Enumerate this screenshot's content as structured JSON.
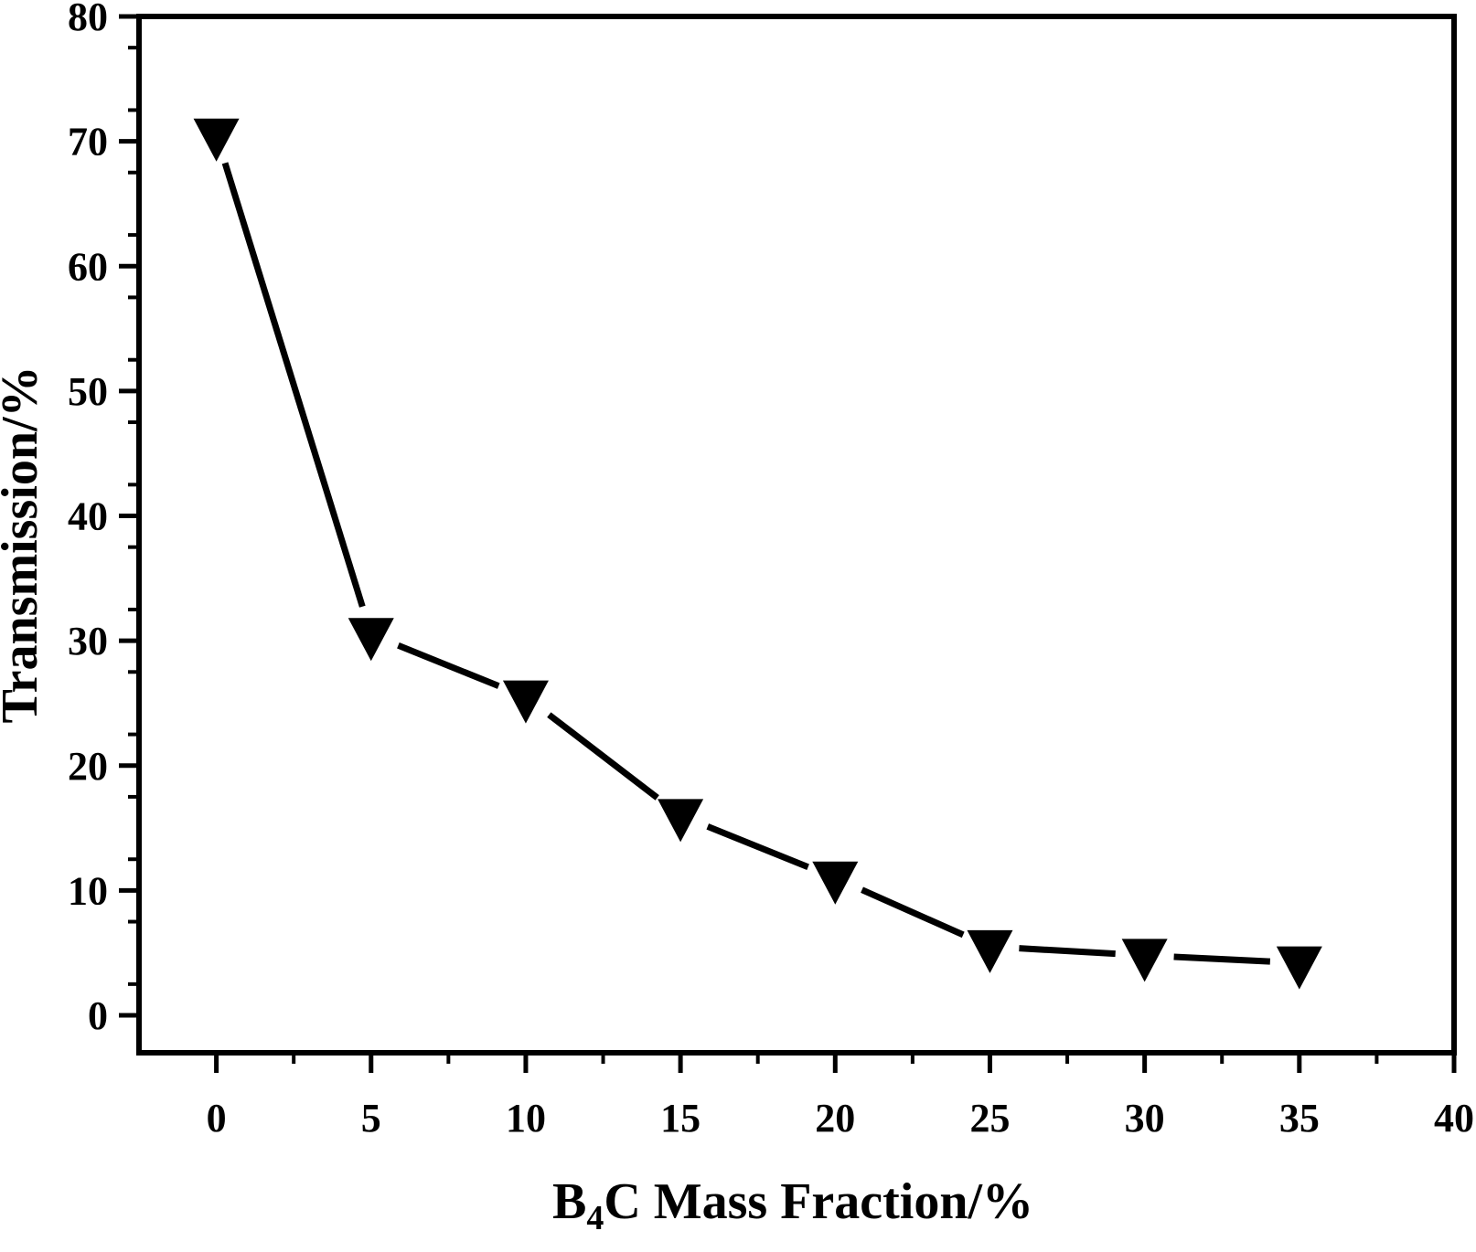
{
  "chart_data": {
    "type": "line",
    "title": "",
    "xlabel": {
      "prefix": "B",
      "subscript": "4",
      "suffix": "C Mass Fraction/%"
    },
    "ylabel": "Transmission/%",
    "xlim": [
      -2.5,
      40
    ],
    "ylim": [
      -3,
      80
    ],
    "xticks": [
      0,
      5,
      10,
      15,
      20,
      25,
      30,
      35,
      40
    ],
    "yticks": [
      0,
      10,
      20,
      30,
      40,
      50,
      60,
      70,
      80
    ],
    "grid": false,
    "legend": "none",
    "series": [
      {
        "marker": "down-triangle",
        "color": "#000000",
        "x": [
          0,
          5,
          10,
          15,
          20,
          25,
          30,
          35
        ],
        "y": [
          70.5,
          30.5,
          25.5,
          16,
          11,
          5.5,
          4.8,
          4.2
        ]
      }
    ]
  }
}
